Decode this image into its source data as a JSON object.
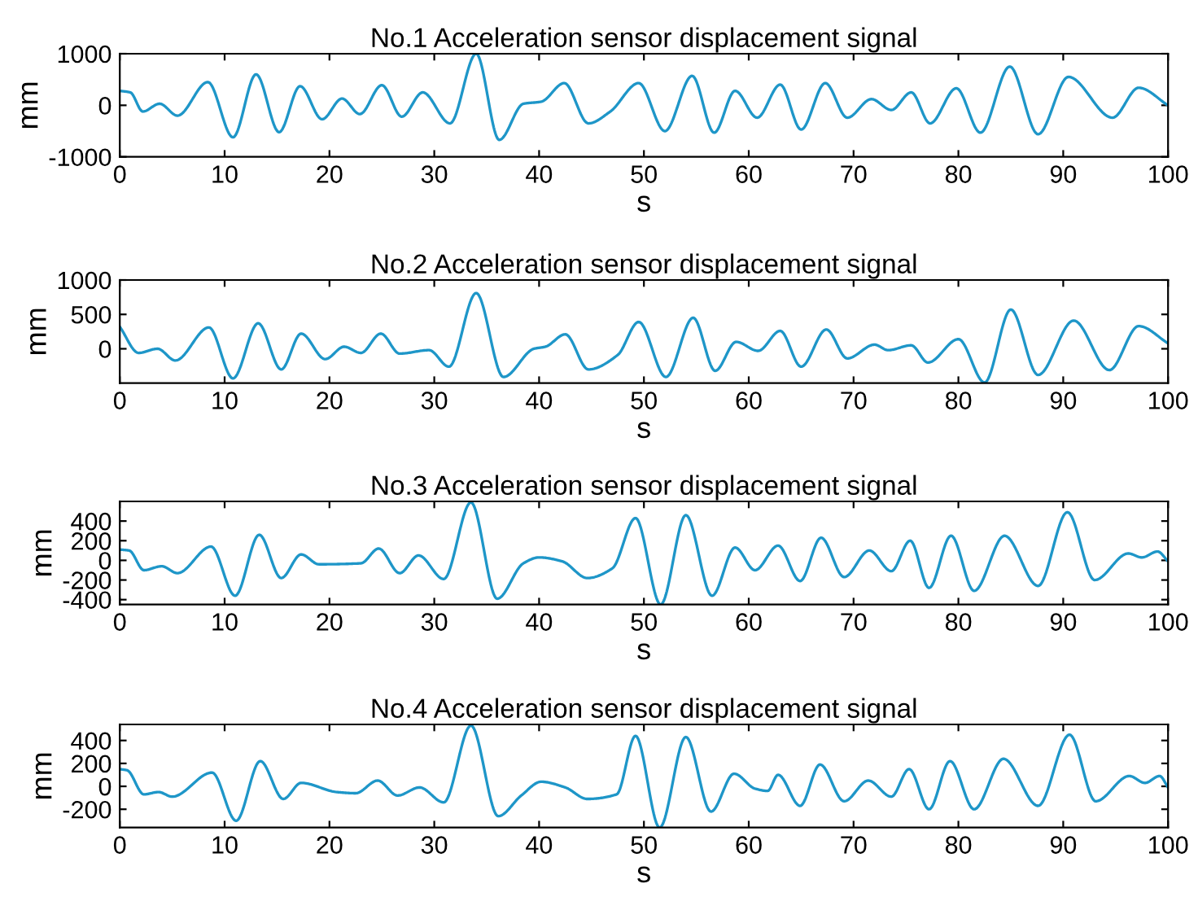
{
  "chart_data": [
    {
      "type": "line",
      "title": "No.1 Acceleration sensor displacement signal",
      "xlabel": "s",
      "ylabel": "mm",
      "xlim": [
        0,
        100
      ],
      "ylim": [
        -1000,
        1000
      ],
      "xticks": [
        0,
        10,
        20,
        30,
        40,
        50,
        60,
        70,
        80,
        90,
        100
      ],
      "yticks": [
        -1000,
        0,
        1000
      ],
      "grid": false,
      "legend": false,
      "series": [
        {
          "color": "#1e96c8",
          "x": [
            0,
            1,
            2.2,
            3.8,
            5.5,
            8.4,
            10.8,
            13,
            15.2,
            17.2,
            19.3,
            21.2,
            22.9,
            25,
            26.9,
            28.9,
            31.5,
            34,
            36.2,
            38.5,
            40.2,
            42.4,
            44.7,
            46.8,
            49.5,
            52,
            54.6,
            56.7,
            58.7,
            60.8,
            63,
            65,
            67.3,
            69.4,
            71.7,
            73.6,
            75.5,
            77.3,
            79.8,
            82.1,
            84.9,
            87.6,
            90.5,
            94.7,
            97.2,
            100
          ],
          "values": [
            280,
            250,
            -120,
            30,
            -200,
            450,
            -620,
            600,
            -520,
            370,
            -270,
            130,
            -170,
            390,
            -220,
            250,
            -350,
            1000,
            -670,
            30,
            70,
            430,
            -350,
            -120,
            430,
            -500,
            570,
            -530,
            280,
            -240,
            400,
            -470,
            430,
            -240,
            120,
            -90,
            250,
            -350,
            330,
            -530,
            750,
            -560,
            550,
            -240,
            340,
            0
          ]
        }
      ]
    },
    {
      "type": "line",
      "title": "No.2 Acceleration sensor displacement signal",
      "xlabel": "s",
      "ylabel": "mm",
      "xlim": [
        0,
        100
      ],
      "ylim": [
        -500,
        1000
      ],
      "xticks": [
        0,
        10,
        20,
        30,
        40,
        50,
        60,
        70,
        80,
        90,
        100
      ],
      "yticks": [
        0,
        500,
        1000
      ],
      "grid": false,
      "legend": false,
      "series": [
        {
          "color": "#1e96c8",
          "x": [
            0,
            1.8,
            3.6,
            5.3,
            8.5,
            10.8,
            13.2,
            15.4,
            17.3,
            19.6,
            21.4,
            23,
            24.9,
            26.7,
            29.5,
            31.4,
            34,
            36.6,
            39.5,
            40.6,
            42.5,
            44.7,
            47.5,
            49.5,
            52.1,
            54.7,
            56.8,
            58.8,
            60.9,
            63,
            65,
            67.4,
            69.4,
            72,
            73.3,
            75.5,
            77.1,
            80,
            82.5,
            85,
            87.6,
            91,
            94.4,
            97.2,
            100
          ],
          "values": [
            320,
            -60,
            0,
            -170,
            310,
            -430,
            370,
            -300,
            220,
            -150,
            30,
            -60,
            220,
            -70,
            -20,
            -260,
            810,
            -410,
            0,
            30,
            210,
            -300,
            -90,
            390,
            -410,
            450,
            -320,
            100,
            -30,
            260,
            -260,
            280,
            -140,
            60,
            -20,
            50,
            -200,
            140,
            -490,
            570,
            -380,
            410,
            -310,
            330,
            80
          ]
        }
      ]
    },
    {
      "type": "line",
      "title": "No.3 Acceleration sensor displacement signal",
      "xlabel": "s",
      "ylabel": "mm",
      "xlim": [
        0,
        100
      ],
      "ylim": [
        -450,
        600
      ],
      "xticks": [
        0,
        10,
        20,
        30,
        40,
        50,
        60,
        70,
        80,
        90,
        100
      ],
      "yticks": [
        -400,
        -200,
        0,
        200,
        400
      ],
      "grid": false,
      "legend": false,
      "series": [
        {
          "color": "#1e96c8",
          "x": [
            0,
            0.9,
            2.3,
            4,
            5.5,
            8.7,
            11,
            13.3,
            15.4,
            17.3,
            19,
            23,
            24.7,
            26.7,
            28.5,
            30.9,
            33.5,
            36,
            38.5,
            40,
            42.2,
            44.6,
            47,
            49.2,
            51.6,
            54,
            56.5,
            58.7,
            60.6,
            62.8,
            64.9,
            66.9,
            69.1,
            71.5,
            73.6,
            75.4,
            77.2,
            79.3,
            81.5,
            84.4,
            87.6,
            90.4,
            93,
            96.2,
            97.5,
            99,
            100
          ],
          "values": [
            110,
            100,
            -100,
            -60,
            -130,
            140,
            -360,
            260,
            -180,
            60,
            -40,
            -30,
            120,
            -130,
            50,
            -190,
            590,
            -390,
            -30,
            30,
            -10,
            -180,
            -80,
            430,
            -450,
            460,
            -360,
            130,
            -100,
            150,
            -210,
            230,
            -170,
            100,
            -110,
            200,
            -280,
            250,
            -310,
            250,
            -260,
            490,
            -200,
            70,
            30,
            90,
            -10
          ]
        }
      ]
    },
    {
      "type": "line",
      "title": "No.4 Acceleration sensor displacement signal",
      "xlabel": "s",
      "ylabel": "mm",
      "xlim": [
        0,
        100
      ],
      "ylim": [
        -360,
        540
      ],
      "xticks": [
        0,
        10,
        20,
        30,
        40,
        50,
        60,
        70,
        80,
        90,
        100
      ],
      "yticks": [
        -200,
        0,
        200,
        400
      ],
      "grid": false,
      "legend": false,
      "series": [
        {
          "color": "#1e96c8",
          "x": [
            0,
            0.7,
            2.3,
            3.7,
            5,
            8.8,
            11.1,
            13.4,
            15.6,
            17.3,
            20.7,
            22.5,
            24.6,
            26.5,
            28.6,
            30.9,
            33.5,
            36.1,
            38.3,
            40.2,
            42.5,
            44.6,
            47.4,
            49.2,
            51.5,
            54,
            56.4,
            58.6,
            60.6,
            61.8,
            62.8,
            64.9,
            66.8,
            69.1,
            71.4,
            73.6,
            75.3,
            77.2,
            79.2,
            81.5,
            84.3,
            87.6,
            90.6,
            93.1,
            96.3,
            97.8,
            99.2,
            100
          ],
          "values": [
            150,
            140,
            -70,
            -50,
            -90,
            120,
            -300,
            220,
            -110,
            30,
            -50,
            -60,
            50,
            -80,
            -10,
            -140,
            530,
            -260,
            -80,
            40,
            -10,
            -110,
            -70,
            440,
            -360,
            430,
            -220,
            110,
            -20,
            -40,
            100,
            -170,
            190,
            -130,
            50,
            -90,
            150,
            -200,
            220,
            -200,
            240,
            -170,
            450,
            -130,
            90,
            30,
            90,
            -10
          ]
        }
      ]
    }
  ]
}
